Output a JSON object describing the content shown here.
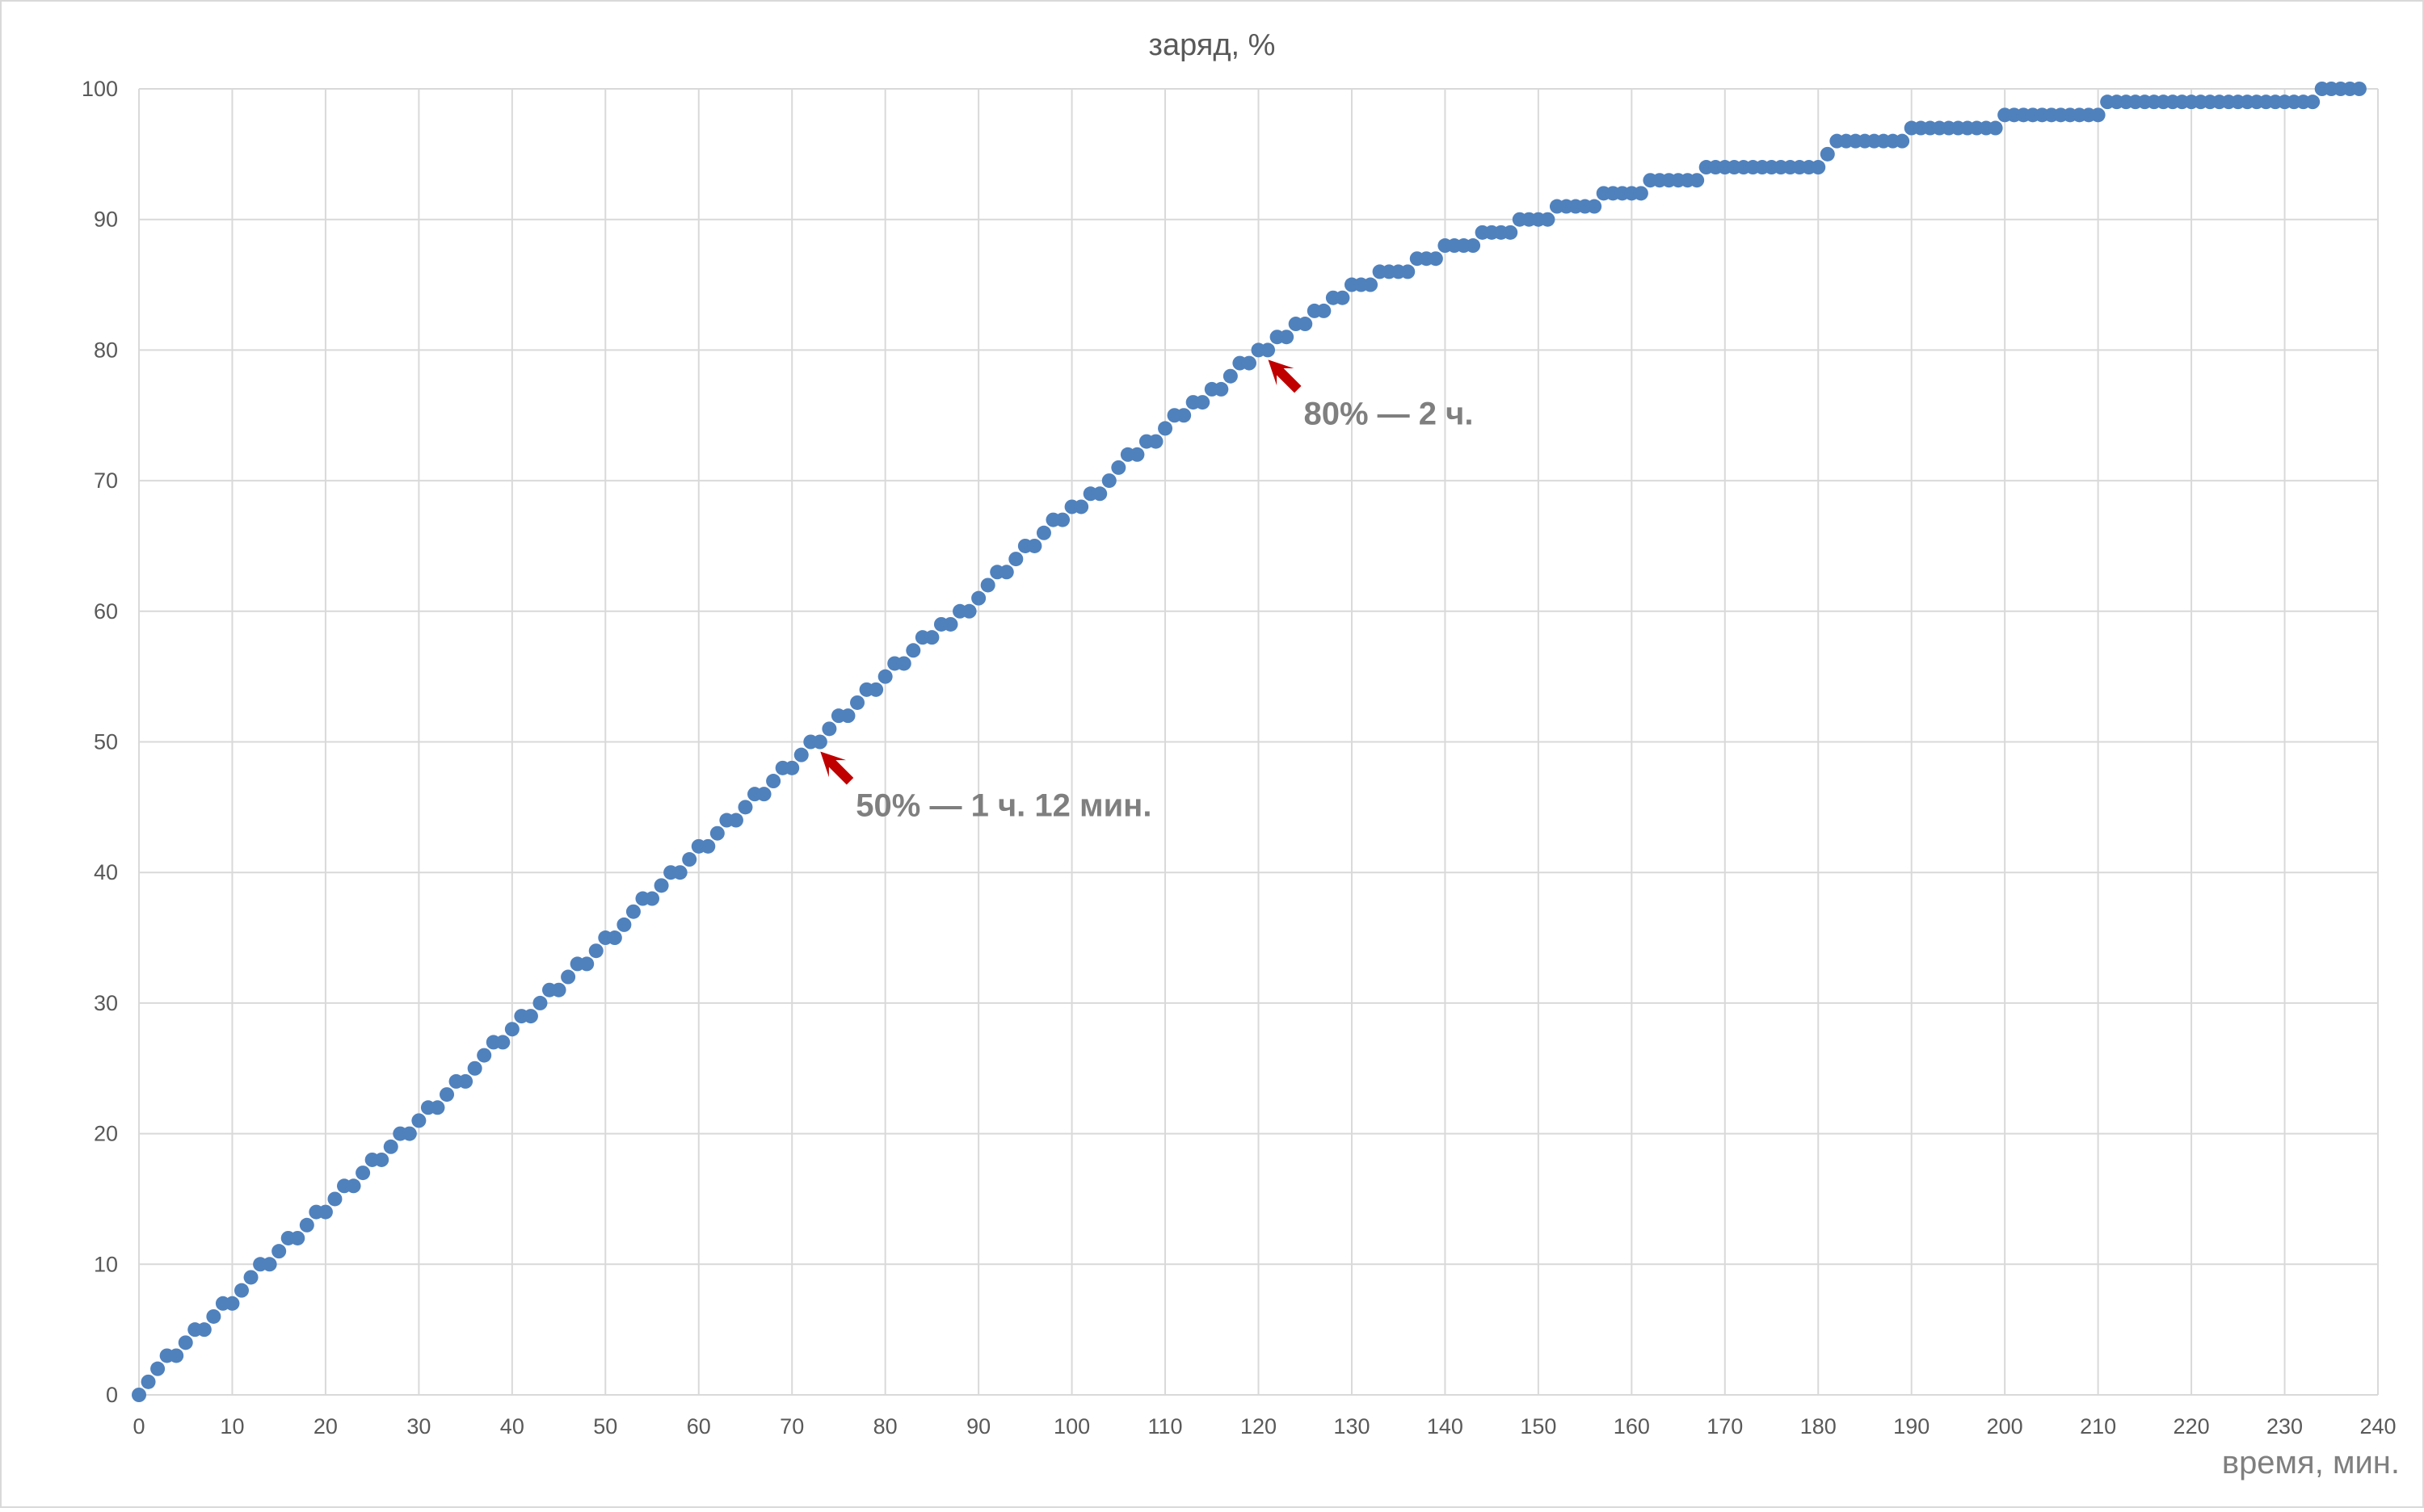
{
  "chart_data": {
    "type": "scatter",
    "title": "заряд, %",
    "xlabel": "время, мин.",
    "ylabel": "",
    "xlim": [
      0,
      240
    ],
    "ylim": [
      0,
      100
    ],
    "x_ticks": [
      0,
      10,
      20,
      30,
      40,
      50,
      60,
      70,
      80,
      90,
      100,
      110,
      120,
      130,
      140,
      150,
      160,
      170,
      180,
      190,
      200,
      210,
      220,
      230,
      240
    ],
    "y_ticks": [
      0,
      10,
      20,
      30,
      40,
      50,
      60,
      70,
      80,
      90,
      100
    ],
    "grid": true,
    "marker_color": "#4f81bd",
    "annotation_color": "#c00000",
    "annotations": [
      {
        "text": "50% — 1 ч. 12 мин.",
        "x": 72,
        "y": 50
      },
      {
        "text": "80% — 2 ч.",
        "x": 120,
        "y": 80
      }
    ],
    "series": [
      {
        "x": [
          0,
          1,
          2,
          3,
          4,
          5,
          6,
          7,
          8,
          9,
          10,
          11,
          12,
          13,
          14,
          15,
          16,
          17,
          18,
          19,
          20,
          21,
          22,
          23,
          24,
          25,
          26,
          27,
          28,
          29,
          30,
          31,
          32,
          33,
          34,
          35,
          36,
          37,
          38,
          39,
          40,
          41,
          42,
          43,
          44,
          45,
          46,
          47,
          48,
          49,
          50,
          51,
          52,
          53,
          54,
          55,
          56,
          57,
          58,
          59,
          60,
          61,
          62,
          63,
          64,
          65,
          66,
          67,
          68,
          69,
          70,
          71,
          72,
          73,
          74,
          75,
          76,
          77,
          78,
          79,
          80,
          81,
          82,
          83,
          84,
          85,
          86,
          87,
          88,
          89,
          90,
          91,
          92,
          93,
          94,
          95,
          96,
          97,
          98,
          99,
          100,
          101,
          102,
          103,
          104,
          105,
          106,
          107,
          108,
          109,
          110,
          111,
          112,
          113,
          114,
          115,
          116,
          117,
          118,
          119,
          120,
          121,
          122,
          123,
          124,
          125,
          126,
          127,
          128,
          129,
          130,
          131,
          132,
          133,
          134,
          135,
          136,
          137,
          138,
          139,
          140,
          141,
          142,
          143,
          144,
          145,
          146,
          147,
          148,
          149,
          150,
          151,
          152,
          153,
          154,
          155,
          156,
          157,
          158,
          159,
          160,
          161,
          162,
          163,
          164,
          165,
          166,
          167,
          168,
          169,
          170,
          171,
          172,
          173,
          174,
          175,
          176,
          177,
          178,
          179,
          180,
          181,
          182,
          183,
          184,
          185,
          186,
          187,
          188,
          189,
          190,
          191,
          192,
          193,
          194,
          195,
          196,
          197,
          198,
          199,
          200,
          201,
          202,
          203,
          204,
          205,
          206,
          207,
          208,
          209,
          210,
          211,
          212,
          213,
          214,
          215,
          216,
          217,
          218,
          219,
          220,
          221,
          222,
          223,
          224,
          225,
          226,
          227,
          228,
          229,
          230,
          231,
          232,
          233,
          234,
          235,
          236,
          237,
          238
        ],
        "y": [
          0,
          1,
          2,
          3,
          3,
          4,
          5,
          5,
          6,
          7,
          7,
          8,
          9,
          10,
          10,
          11,
          12,
          12,
          13,
          14,
          14,
          15,
          16,
          16,
          17,
          18,
          18,
          19,
          20,
          20,
          21,
          22,
          22,
          23,
          24,
          24,
          25,
          26,
          27,
          27,
          28,
          29,
          29,
          30,
          31,
          31,
          32,
          33,
          33,
          34,
          35,
          35,
          36,
          37,
          38,
          38,
          39,
          40,
          40,
          41,
          42,
          42,
          43,
          44,
          44,
          45,
          46,
          46,
          47,
          48,
          48,
          49,
          50,
          50,
          51,
          52,
          52,
          53,
          54,
          54,
          55,
          56,
          56,
          57,
          58,
          58,
          59,
          59,
          60,
          60,
          61,
          62,
          63,
          63,
          64,
          65,
          65,
          66,
          67,
          67,
          68,
          68,
          69,
          69,
          70,
          71,
          72,
          72,
          73,
          73,
          74,
          75,
          75,
          76,
          76,
          77,
          77,
          78,
          79,
          79,
          80,
          80,
          81,
          81,
          82,
          82,
          83,
          83,
          84,
          84,
          85,
          85,
          85,
          86,
          86,
          86,
          86,
          87,
          87,
          87,
          88,
          88,
          88,
          88,
          89,
          89,
          89,
          89,
          90,
          90,
          90,
          90,
          91,
          91,
          91,
          91,
          91,
          92,
          92,
          92,
          92,
          92,
          93,
          93,
          93,
          93,
          93,
          93,
          94,
          94,
          94,
          94,
          94,
          94,
          94,
          94,
          94,
          94,
          94,
          94,
          94,
          95,
          96,
          96,
          96,
          96,
          96,
          96,
          96,
          96,
          97,
          97,
          97,
          97,
          97,
          97,
          97,
          97,
          97,
          97,
          98,
          98,
          98,
          98,
          98,
          98,
          98,
          98,
          98,
          98,
          98,
          99,
          99,
          99,
          99,
          99,
          99,
          99,
          99,
          99,
          99,
          99,
          99,
          99,
          99,
          99,
          99,
          99,
          99,
          99,
          99,
          99,
          99,
          99,
          100,
          100,
          100,
          100,
          100
        ]
      }
    ]
  }
}
